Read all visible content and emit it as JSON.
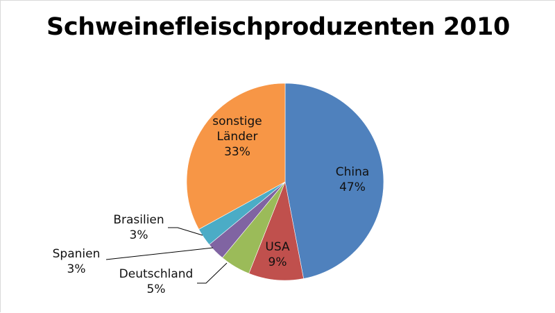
{
  "chart_data": {
    "type": "pie",
    "title": "Schweinefleischproduzenten 2010",
    "slices": [
      {
        "category": "China",
        "value": 47,
        "label": "47%",
        "color": "#4f81bd"
      },
      {
        "category": "USA",
        "value": 9,
        "label": "9%",
        "color": "#c0504d"
      },
      {
        "category": "Deutschland",
        "value": 5,
        "label": "5%",
        "color": "#9bbb59"
      },
      {
        "category": "Spanien",
        "value": 3,
        "label": "3%",
        "color": "#8064a2"
      },
      {
        "category": "Brasilien",
        "value": 3,
        "label": "3%",
        "color": "#4bacc6"
      },
      {
        "category": "sonstige Länder",
        "value": 33,
        "label": "33%",
        "color": "#f79646"
      }
    ],
    "start_angle": "12 o'clock",
    "direction": "clockwise",
    "legend": "none"
  }
}
